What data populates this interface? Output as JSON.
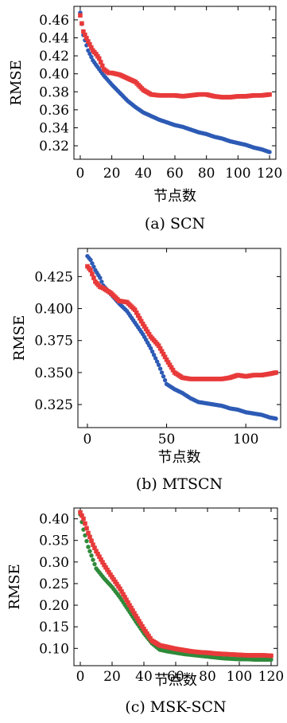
{
  "chart_data": [
    {
      "type": "scatter",
      "caption": "(a) SCN",
      "xlabel": "节点数",
      "ylabel": "RMSE",
      "xlim": [
        -4,
        124
      ],
      "ylim": [
        0.305,
        0.475
      ],
      "xticks": [
        0,
        20,
        40,
        60,
        80,
        100,
        120
      ],
      "yticks": [
        0.32,
        0.34,
        0.36,
        0.38,
        0.4,
        0.42,
        0.44,
        0.46
      ],
      "ytick_labels": [
        "0.32",
        "0.34",
        "0.36",
        "0.38",
        "0.40",
        "0.42",
        "0.44",
        "0.46"
      ],
      "series": [
        {
          "color": "#2d5bb5",
          "marker": "circle",
          "x": [
            0,
            2,
            5,
            8,
            10,
            15,
            20,
            25,
            30,
            35,
            40,
            45,
            50,
            55,
            60,
            65,
            70,
            75,
            80,
            85,
            90,
            95,
            100,
            105,
            110,
            115,
            120
          ],
          "y": [
            0.468,
            0.443,
            0.426,
            0.415,
            0.41,
            0.398,
            0.388,
            0.379,
            0.37,
            0.363,
            0.357,
            0.353,
            0.349,
            0.346,
            0.343,
            0.341,
            0.338,
            0.335,
            0.333,
            0.33,
            0.328,
            0.325,
            0.323,
            0.321,
            0.318,
            0.316,
            0.313
          ]
        },
        {
          "color": "#e83a3a",
          "marker": "square",
          "x": [
            0,
            2,
            5,
            8,
            10,
            12,
            15,
            18,
            20,
            25,
            30,
            35,
            40,
            45,
            50,
            55,
            60,
            65,
            70,
            75,
            80,
            85,
            90,
            95,
            100,
            105,
            110,
            115,
            120
          ],
          "y": [
            0.465,
            0.447,
            0.436,
            0.426,
            0.422,
            0.417,
            0.405,
            0.401,
            0.401,
            0.399,
            0.395,
            0.391,
            0.382,
            0.377,
            0.376,
            0.376,
            0.376,
            0.375,
            0.376,
            0.377,
            0.377,
            0.375,
            0.374,
            0.374,
            0.375,
            0.375,
            0.376,
            0.376,
            0.377
          ]
        }
      ]
    },
    {
      "type": "scatter",
      "caption": "(b) MTSCN",
      "xlabel": "节点数",
      "ylabel": "RMSE",
      "xlim": [
        -6,
        122
      ],
      "ylim": [
        0.307,
        0.447
      ],
      "xticks": [
        0,
        50,
        100
      ],
      "yticks": [
        0.325,
        0.35,
        0.375,
        0.4,
        0.425
      ],
      "ytick_labels": [
        "0.325",
        "0.350",
        "0.375",
        "0.400",
        "0.425"
      ],
      "series": [
        {
          "color": "#2d5bb5",
          "marker": "circle",
          "x": [
            0,
            2,
            5,
            8,
            10,
            15,
            20,
            25,
            30,
            35,
            40,
            45,
            50,
            55,
            60,
            65,
            70,
            75,
            80,
            85,
            90,
            95,
            100,
            105,
            110,
            115,
            119
          ],
          "y": [
            0.441,
            0.438,
            0.43,
            0.424,
            0.418,
            0.411,
            0.404,
            0.398,
            0.389,
            0.38,
            0.369,
            0.356,
            0.341,
            0.337,
            0.334,
            0.33,
            0.327,
            0.326,
            0.325,
            0.324,
            0.322,
            0.321,
            0.319,
            0.318,
            0.317,
            0.315,
            0.314
          ]
        },
        {
          "color": "#e83a3a",
          "marker": "square",
          "x": [
            0,
            2,
            5,
            8,
            10,
            15,
            20,
            25,
            30,
            35,
            40,
            45,
            50,
            55,
            60,
            65,
            70,
            75,
            80,
            85,
            90,
            95,
            100,
            105,
            110,
            115,
            119
          ],
          "y": [
            0.433,
            0.43,
            0.421,
            0.417,
            0.416,
            0.412,
            0.406,
            0.405,
            0.399,
            0.388,
            0.378,
            0.371,
            0.36,
            0.35,
            0.346,
            0.345,
            0.345,
            0.345,
            0.345,
            0.345,
            0.346,
            0.348,
            0.347,
            0.348,
            0.348,
            0.349,
            0.35
          ]
        }
      ]
    },
    {
      "type": "scatter",
      "caption": "(c) MSK-SCN",
      "xlabel": "节点数",
      "ylabel": "RMSE",
      "xlim": [
        -4,
        124
      ],
      "ylim": [
        0.06,
        0.425
      ],
      "xticks": [
        0,
        20,
        40,
        60,
        80,
        100,
        120
      ],
      "yticks": [
        0.1,
        0.15,
        0.2,
        0.25,
        0.3,
        0.35,
        0.4
      ],
      "ytick_labels": [
        "0.10",
        "0.15",
        "0.20",
        "0.25",
        "0.30",
        "0.35",
        "0.40"
      ],
      "series": [
        {
          "color": "#2f8a3a",
          "marker": "circle",
          "x": [
            0,
            2,
            5,
            8,
            10,
            15,
            20,
            25,
            30,
            35,
            40,
            45,
            50,
            55,
            60,
            65,
            70,
            75,
            80,
            85,
            90,
            95,
            100,
            105,
            110,
            115,
            120
          ],
          "y": [
            0.41,
            0.375,
            0.335,
            0.305,
            0.285,
            0.262,
            0.242,
            0.218,
            0.19,
            0.162,
            0.135,
            0.112,
            0.097,
            0.093,
            0.09,
            0.087,
            0.085,
            0.083,
            0.081,
            0.079,
            0.077,
            0.076,
            0.075,
            0.075,
            0.074,
            0.074,
            0.074
          ]
        },
        {
          "color": "#e83a3a",
          "marker": "square",
          "x": [
            0,
            2,
            5,
            8,
            10,
            15,
            20,
            25,
            30,
            35,
            40,
            45,
            50,
            55,
            60,
            65,
            70,
            75,
            80,
            85,
            90,
            95,
            100,
            105,
            110,
            115,
            120
          ],
          "y": [
            0.415,
            0.4,
            0.367,
            0.34,
            0.325,
            0.293,
            0.265,
            0.238,
            0.206,
            0.175,
            0.145,
            0.118,
            0.107,
            0.103,
            0.099,
            0.096,
            0.093,
            0.091,
            0.09,
            0.088,
            0.087,
            0.086,
            0.085,
            0.084,
            0.084,
            0.084,
            0.083
          ]
        }
      ]
    }
  ]
}
